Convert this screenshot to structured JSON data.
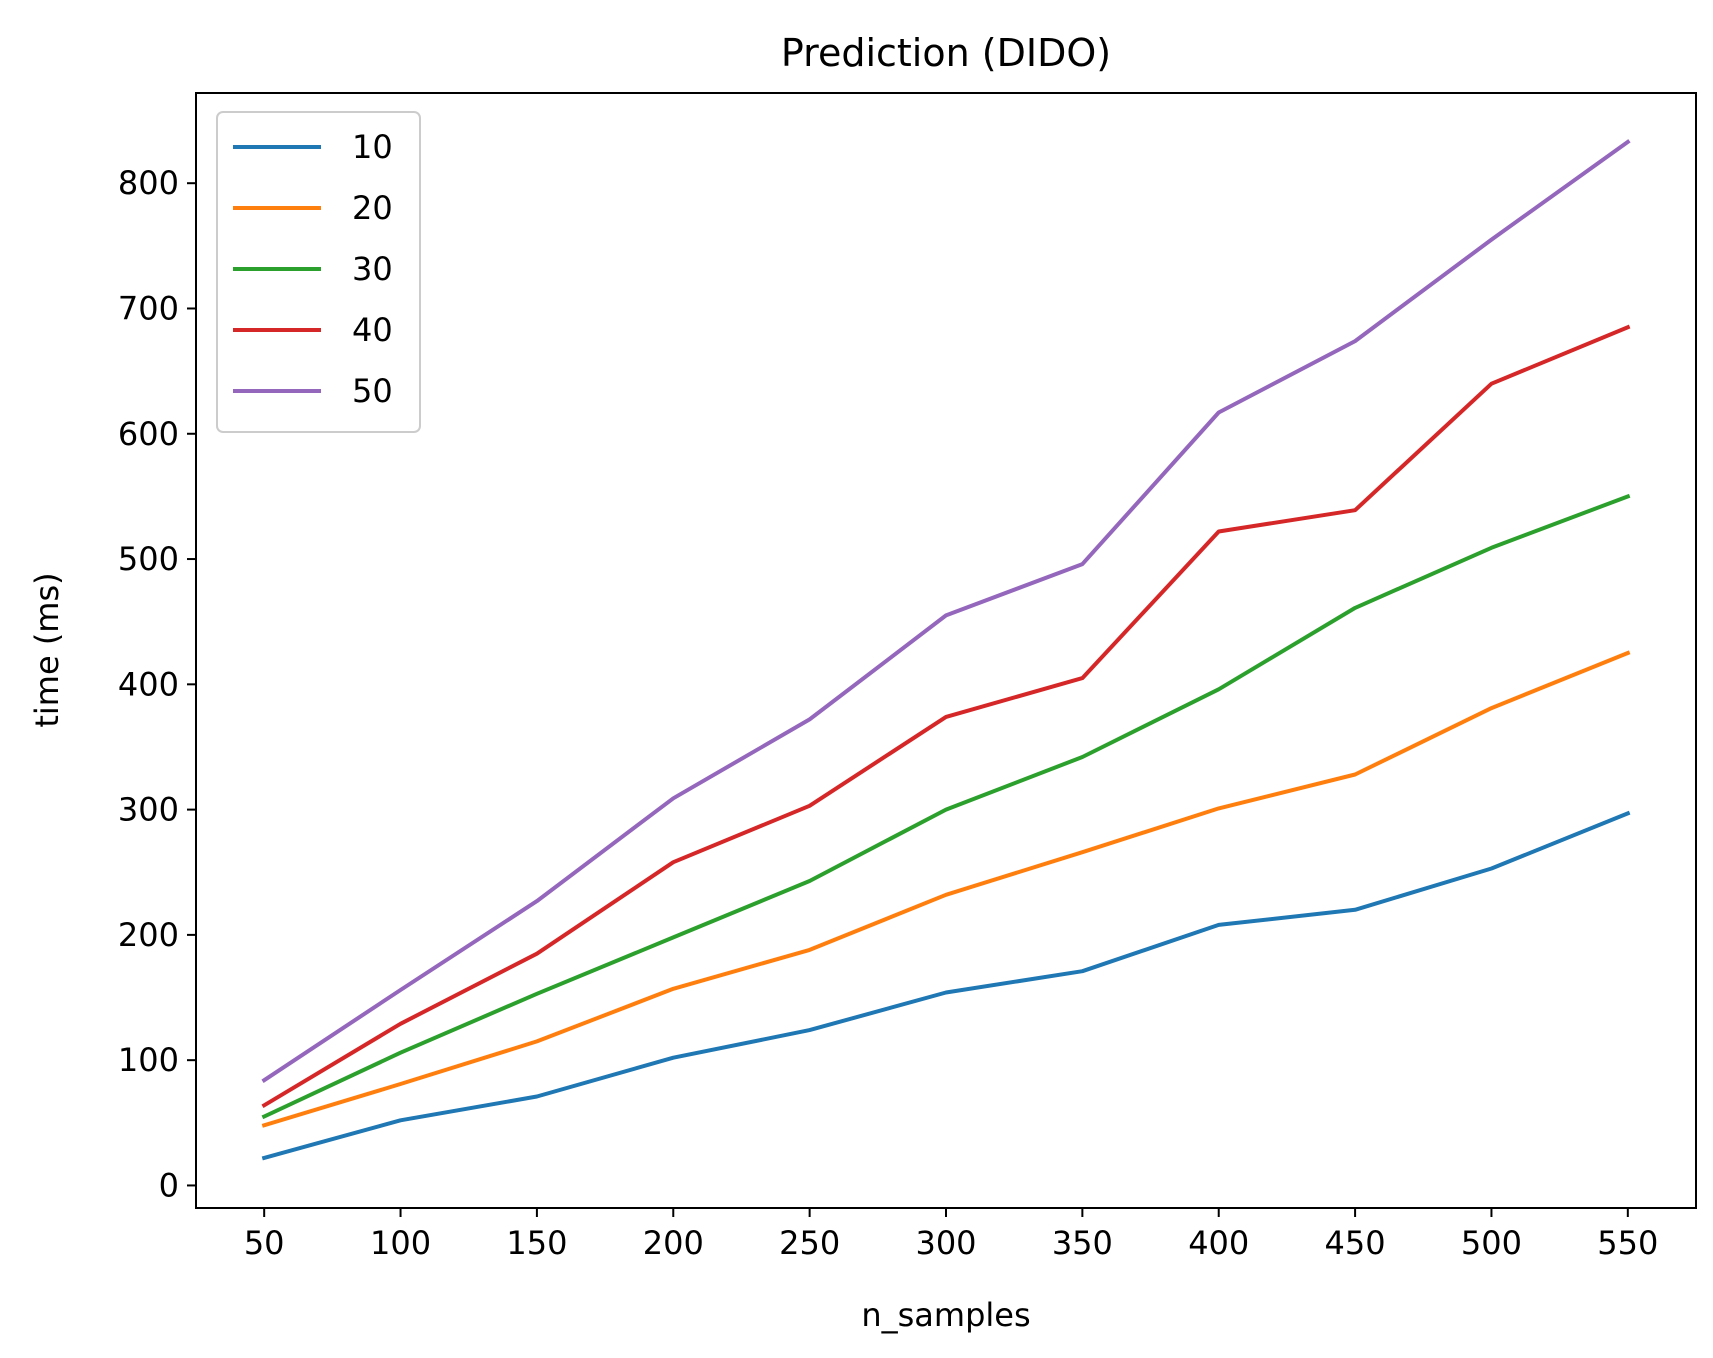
{
  "chart_data": {
    "type": "line",
    "title": "Prediction (DIDO)",
    "xlabel": "n_samples",
    "ylabel": "time (ms)",
    "x": [
      50,
      100,
      150,
      200,
      250,
      300,
      350,
      400,
      450,
      500,
      550
    ],
    "xticks": [
      "50",
      "100",
      "150",
      "200",
      "250",
      "300",
      "350",
      "400",
      "450",
      "500",
      "550"
    ],
    "yticks": [
      "0",
      "100",
      "200",
      "300",
      "400",
      "500",
      "600",
      "700",
      "800"
    ],
    "xlim": [
      25,
      575
    ],
    "ylim": [
      -18,
      872
    ],
    "grid": false,
    "legend_position": "upper left",
    "series": [
      {
        "name": "10",
        "color": "#1f77b4",
        "values": [
          22,
          52,
          71,
          102,
          124,
          154,
          171,
          208,
          220,
          253,
          297
        ]
      },
      {
        "name": "20",
        "color": "#ff7f0e",
        "values": [
          48,
          81,
          115,
          157,
          188,
          232,
          266,
          301,
          328,
          381,
          425
        ]
      },
      {
        "name": "30",
        "color": "#2ca02c",
        "values": [
          55,
          106,
          153,
          198,
          243,
          300,
          342,
          396,
          461,
          509,
          550
        ]
      },
      {
        "name": "40",
        "color": "#d62728",
        "values": [
          64,
          129,
          185,
          258,
          303,
          374,
          405,
          522,
          539,
          640,
          685
        ]
      },
      {
        "name": "50",
        "color": "#9467bd",
        "values": [
          84,
          156,
          227,
          309,
          372,
          455,
          496,
          617,
          674,
          755,
          833
        ]
      }
    ]
  }
}
